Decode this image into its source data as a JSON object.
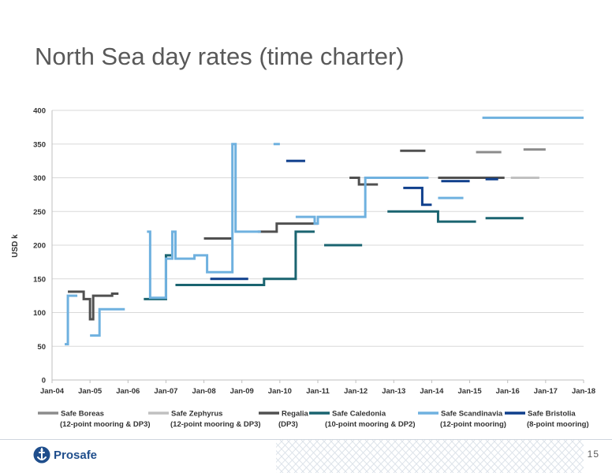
{
  "slide": {
    "title": "North Sea day rates (time charter)",
    "page_number": "15",
    "logo_text": "Prosafe"
  },
  "chart_data": {
    "type": "line",
    "ylabel": "USD k",
    "xlabel": "",
    "ylim": [
      0,
      400
    ],
    "y_ticks": [
      0,
      50,
      100,
      150,
      200,
      250,
      300,
      350,
      400
    ],
    "x_range": [
      "2004-01",
      "2018-01"
    ],
    "x_ticks": [
      "Jan-04",
      "Jan-05",
      "Jan-06",
      "Jan-07",
      "Jan-08",
      "Jan-09",
      "Jan-10",
      "Jan-11",
      "Jan-12",
      "Jan-13",
      "Jan-14",
      "Jan-15",
      "Jan-16",
      "Jan-17",
      "Jan-18"
    ],
    "grid": true,
    "legend_position": "bottom",
    "series": [
      {
        "name": "Safe Boreas",
        "sublabel": "(12-point mooring & DP3)",
        "color": "#8c8c8c",
        "points": [
          [
            "2015-03",
            338
          ],
          [
            "2015-11",
            338
          ],
          [
            "2016-06",
            342
          ],
          [
            "2017-01",
            342
          ]
        ]
      },
      {
        "name": "Safe Zephyrus",
        "sublabel": "(12-point mooring & DP3)",
        "color": "#c0c0c0",
        "points": [
          [
            "2016-02",
            300
          ],
          [
            "2016-11",
            300
          ]
        ]
      },
      {
        "name": "Regalia",
        "sublabel": "(DP3)",
        "color": "#505050",
        "points": [
          [
            "2004-06",
            131
          ],
          [
            "2004-11",
            131
          ],
          [
            "2004-11",
            120
          ],
          [
            "2005-01",
            120
          ],
          [
            "2005-01",
            90
          ],
          [
            "2005-02",
            90
          ],
          [
            "2005-02",
            125
          ],
          [
            "2005-08",
            125
          ],
          [
            "2005-08",
            128
          ],
          [
            "2005-10",
            128
          ],
          [
            "2008-01",
            210
          ],
          [
            "2008-10",
            210
          ],
          [
            "2009-06",
            220
          ],
          [
            "2009-12",
            220
          ],
          [
            "2009-12",
            232
          ],
          [
            "2011-01",
            232
          ],
          [
            "2011-11",
            300
          ],
          [
            "2012-02",
            300
          ],
          [
            "2012-02",
            290
          ],
          [
            "2012-08",
            290
          ],
          [
            "2013-03",
            340
          ],
          [
            "2013-11",
            340
          ],
          [
            "2014-03",
            300
          ],
          [
            "2014-10",
            300
          ],
          [
            "2015-07",
            300
          ],
          [
            "2015-12",
            300
          ]
        ]
      },
      {
        "name": "Safe Caledonia",
        "sublabel": "(10-point mooring & DP2)",
        "color": "#1a6470",
        "points": [
          [
            "2006-06",
            120
          ],
          [
            "2007-01",
            120
          ],
          [
            "2007-01",
            185
          ],
          [
            "2007-03",
            185
          ],
          [
            "2007-04",
            141
          ],
          [
            "2009-08",
            141
          ],
          [
            "2009-08",
            150
          ],
          [
            "2010-06",
            150
          ],
          [
            "2010-06",
            220
          ],
          [
            "2010-12",
            220
          ],
          [
            "2011-03",
            200
          ],
          [
            "2012-03",
            200
          ],
          [
            "2012-11",
            250
          ],
          [
            "2014-03",
            250
          ],
          [
            "2014-03",
            235
          ],
          [
            "2015-03",
            235
          ],
          [
            "2015-06",
            240
          ],
          [
            "2016-06",
            240
          ]
        ]
      },
      {
        "name": "Safe Scandinavia",
        "sublabel": "(12-point mooring)",
        "color": "#6fb1df",
        "points": [
          [
            "2004-05",
            53
          ],
          [
            "2004-06",
            53
          ],
          [
            "2004-06",
            125
          ],
          [
            "2004-09",
            125
          ],
          [
            "2005-01",
            66
          ],
          [
            "2005-04",
            66
          ],
          [
            "2005-04",
            105
          ],
          [
            "2005-12",
            105
          ],
          [
            "2006-07",
            220
          ],
          [
            "2006-08",
            220
          ],
          [
            "2006-08",
            122
          ],
          [
            "2007-01",
            122
          ],
          [
            "2007-01",
            180
          ],
          [
            "2007-03",
            180
          ],
          [
            "2007-03",
            220
          ],
          [
            "2007-04",
            220
          ],
          [
            "2007-04",
            180
          ],
          [
            "2007-10",
            180
          ],
          [
            "2007-10",
            185
          ],
          [
            "2008-02",
            185
          ],
          [
            "2008-02",
            160
          ],
          [
            "2008-10",
            160
          ],
          [
            "2008-10",
            350
          ],
          [
            "2008-11",
            350
          ],
          [
            "2008-11",
            220
          ],
          [
            "2009-07",
            220
          ],
          [
            "2009-11",
            350
          ],
          [
            "2010-01",
            350
          ],
          [
            "2010-06",
            242
          ],
          [
            "2010-12",
            242
          ],
          [
            "2010-12",
            232
          ],
          [
            "2011-01",
            232
          ],
          [
            "2011-01",
            242
          ],
          [
            "2012-04",
            242
          ],
          [
            "2012-04",
            300
          ],
          [
            "2013-01",
            300
          ],
          [
            "2013-03",
            300
          ],
          [
            "2013-12",
            300
          ],
          [
            "2014-03",
            270
          ],
          [
            "2014-11",
            270
          ],
          [
            "2015-05",
            389
          ],
          [
            "2018-01",
            389
          ]
        ]
      },
      {
        "name": "Safe Bristolia",
        "sublabel": "(8-point mooring)",
        "color": "#0f3f8c",
        "points": [
          [
            "2008-03",
            150
          ],
          [
            "2009-03",
            150
          ],
          [
            "2010-03",
            325
          ],
          [
            "2010-09",
            325
          ],
          [
            "2013-04",
            285
          ],
          [
            "2013-10",
            285
          ],
          [
            "2013-10",
            260
          ],
          [
            "2014-01",
            260
          ],
          [
            "2014-04",
            295
          ],
          [
            "2014-10",
            295
          ],
          [
            "2014-10",
            295
          ],
          [
            "2015-01",
            295
          ],
          [
            "2015-06",
            298
          ],
          [
            "2015-10",
            298
          ]
        ]
      }
    ]
  }
}
